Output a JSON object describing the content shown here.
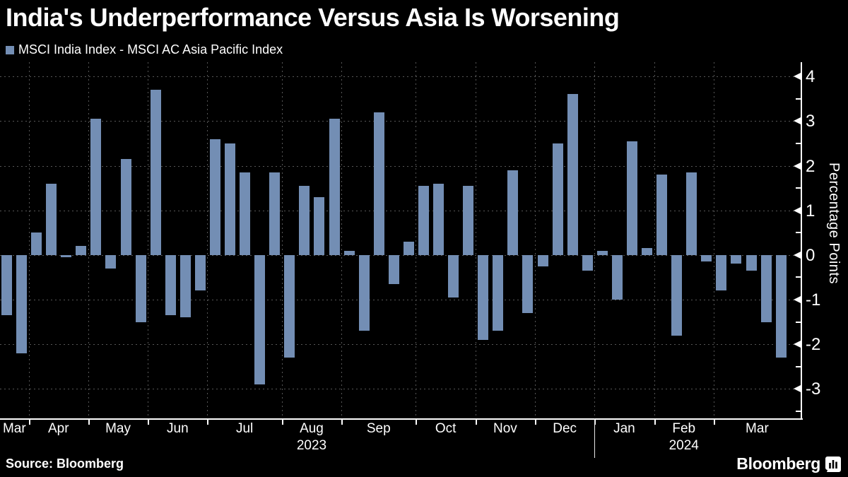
{
  "title": "India's Underperformance Versus Asia Is Worsening",
  "legend": {
    "label": "MSCI India Index - MSCI AC Asia Pacific Index"
  },
  "footer": {
    "source": "Source: Bloomberg",
    "brand": "Bloomberg"
  },
  "colors": {
    "background": "#000000",
    "bar": "#738eb4",
    "text": "#ffffff",
    "grid": "#575757",
    "axis": "#ffffff"
  },
  "chart_data": {
    "type": "bar",
    "title": "India's Underperformance Versus Asia Is Worsening",
    "series_name": "MSCI India Index - MSCI AC Asia Pacific Index",
    "ylabel": "Percentage Points",
    "ylim": [
      -3.66,
      4.32
    ],
    "yticks_major": [
      4,
      3,
      2,
      1,
      0,
      -1,
      -2,
      -3
    ],
    "yticks_minor": [
      3.5,
      2.5,
      1.5,
      0.5,
      -0.5,
      -1.5,
      -2.5,
      -3.5
    ],
    "grid": true,
    "legend_position": "top-left",
    "x_unit": "weekly",
    "x_months": [
      {
        "label": "Mar",
        "weeks": 2
      },
      {
        "label": "Apr",
        "weeks": 4
      },
      {
        "label": "May",
        "weeks": 4
      },
      {
        "label": "Jun",
        "weeks": 4
      },
      {
        "label": "Jul",
        "weeks": 5
      },
      {
        "label": "Aug",
        "weeks": 4
      },
      {
        "label": "Sep",
        "weeks": 5
      },
      {
        "label": "Oct",
        "weeks": 4
      },
      {
        "label": "Nov",
        "weeks": 4
      },
      {
        "label": "Dec",
        "weeks": 4
      },
      {
        "label": "Jan",
        "weeks": 4
      },
      {
        "label": "Feb",
        "weeks": 4
      },
      {
        "label": "Mar",
        "weeks": 5
      }
    ],
    "year_labels": [
      {
        "label": "2023",
        "month_index": 5
      },
      {
        "label": "2024",
        "month_index": 11
      }
    ],
    "year_divider_after_month_index": 9,
    "values": [
      -1.35,
      -2.2,
      0.5,
      1.6,
      -0.05,
      0.2,
      3.05,
      -0.3,
      2.15,
      -1.5,
      3.7,
      -1.35,
      -1.4,
      -0.8,
      2.6,
      2.5,
      1.85,
      -2.9,
      1.85,
      -2.3,
      1.55,
      1.3,
      3.05,
      0.1,
      -1.7,
      3.2,
      -0.65,
      0.3,
      1.55,
      1.6,
      -0.95,
      1.55,
      -1.9,
      -1.7,
      1.9,
      -1.3,
      -0.25,
      2.5,
      3.6,
      -0.35,
      0.1,
      -1.0,
      2.55,
      0.15,
      1.8,
      -1.8,
      1.85,
      -0.15,
      -0.8,
      -0.2,
      -0.35,
      -1.5,
      -2.3
    ]
  }
}
